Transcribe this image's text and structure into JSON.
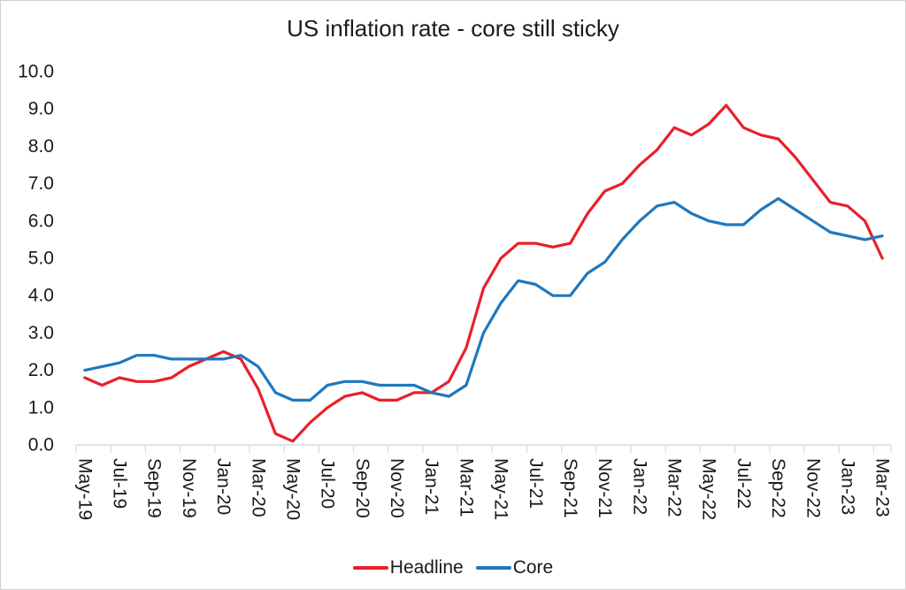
{
  "chart_data": {
    "type": "line",
    "title": "US inflation rate - core still sticky",
    "xlabel": "",
    "ylabel": "",
    "ylim": [
      0.0,
      10.0
    ],
    "y_tick_labels": [
      "10.0",
      "9.0",
      "8.0",
      "7.0",
      "6.0",
      "5.0",
      "4.0",
      "3.0",
      "2.0",
      "1.0",
      "0.0"
    ],
    "grid": "off",
    "legend_position": "bottom",
    "x": [
      "May-19",
      "Jun-19",
      "Jul-19",
      "Aug-19",
      "Sep-19",
      "Oct-19",
      "Nov-19",
      "Dec-19",
      "Jan-20",
      "Feb-20",
      "Mar-20",
      "Apr-20",
      "May-20",
      "Jun-20",
      "Jul-20",
      "Aug-20",
      "Sep-20",
      "Oct-20",
      "Nov-20",
      "Dec-20",
      "Jan-21",
      "Feb-21",
      "Mar-21",
      "Apr-21",
      "May-21",
      "Jun-21",
      "Jul-21",
      "Aug-21",
      "Sep-21",
      "Oct-21",
      "Nov-21",
      "Dec-21",
      "Jan-22",
      "Feb-22",
      "Mar-22",
      "Apr-22",
      "May-22",
      "Jun-22",
      "Jul-22",
      "Aug-22",
      "Sep-22",
      "Oct-22",
      "Nov-22",
      "Dec-22",
      "Jan-23",
      "Feb-23",
      "Mar-23"
    ],
    "x_tick_labels": [
      "May-19",
      "Jul-19",
      "Sep-19",
      "Nov-19",
      "Jan-20",
      "Mar-20",
      "May-20",
      "Jul-20",
      "Sep-20",
      "Nov-20",
      "Jan-21",
      "Mar-21",
      "May-21",
      "Jul-21",
      "Sep-21",
      "Nov-21",
      "Jan-22",
      "Mar-22",
      "May-22",
      "Jul-22",
      "Sep-22",
      "Nov-22",
      "Jan-23",
      "Mar-23"
    ],
    "series": [
      {
        "name": "Headline",
        "color": "#e8202a",
        "values": [
          1.8,
          1.6,
          1.8,
          1.7,
          1.7,
          1.8,
          2.1,
          2.3,
          2.5,
          2.3,
          1.5,
          0.3,
          0.1,
          0.6,
          1.0,
          1.3,
          1.4,
          1.2,
          1.2,
          1.4,
          1.4,
          1.7,
          2.6,
          4.2,
          5.0,
          5.4,
          5.4,
          5.3,
          5.4,
          6.2,
          6.8,
          7.0,
          7.5,
          7.9,
          8.5,
          8.3,
          8.6,
          9.1,
          8.5,
          8.3,
          8.2,
          7.7,
          7.1,
          6.5,
          6.4,
          6.0,
          5.0
        ]
      },
      {
        "name": "Core",
        "color": "#1f78bd",
        "values": [
          2.0,
          2.1,
          2.2,
          2.4,
          2.4,
          2.3,
          2.3,
          2.3,
          2.3,
          2.4,
          2.1,
          1.4,
          1.2,
          1.2,
          1.6,
          1.7,
          1.7,
          1.6,
          1.6,
          1.6,
          1.4,
          1.3,
          1.6,
          3.0,
          3.8,
          4.4,
          4.3,
          4.0,
          4.0,
          4.6,
          4.9,
          5.5,
          6.0,
          6.4,
          6.5,
          6.2,
          6.0,
          5.9,
          5.9,
          6.3,
          6.6,
          6.3,
          6.0,
          5.7,
          5.6,
          5.5,
          5.6
        ]
      }
    ],
    "axis_color": "#d9d9d9",
    "label_color": "#1a1a1a"
  }
}
